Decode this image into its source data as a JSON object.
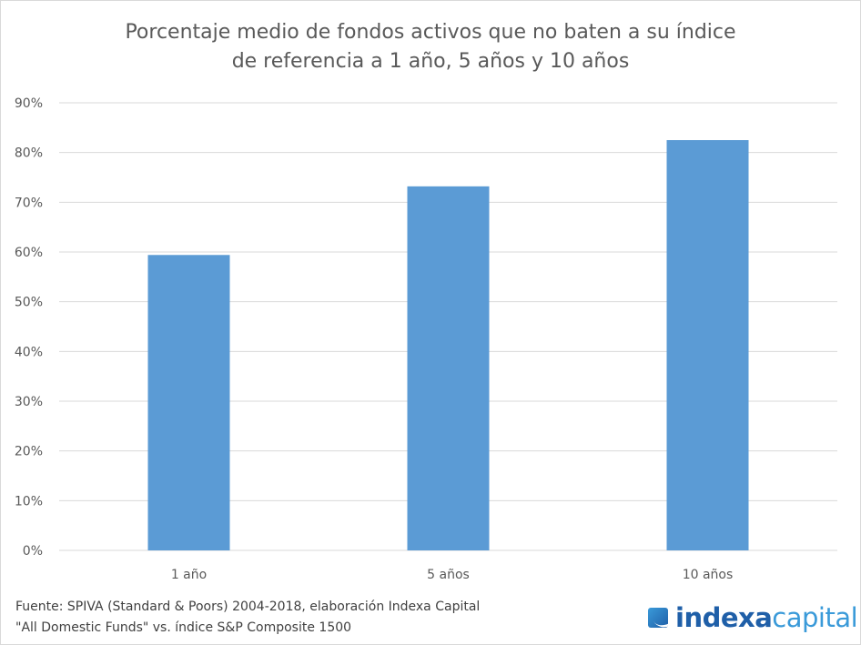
{
  "chart_data": {
    "type": "bar",
    "title_lines": [
      "Porcentaje medio de fondos activos que no baten a su índice",
      "de referencia a 1 año, 5 años y 10 años"
    ],
    "categories": [
      "1 año",
      "5 años",
      "10 años"
    ],
    "values": [
      59.4,
      73.2,
      82.5
    ],
    "value_unit": "%",
    "ylim": [
      0,
      90
    ],
    "yticks": [
      "0%",
      "10%",
      "20%",
      "30%",
      "40%",
      "50%",
      "60%",
      "70%",
      "80%",
      "90%"
    ],
    "grid": true,
    "legend": "none",
    "bar_color": "#5b9bd5"
  },
  "footer": {
    "line1": "Fuente: SPIVA (Standard & Poors) 2004-2018, elaboración Indexa Capital",
    "line2": "\"All Domestic Funds\" vs. índice S&P Composite 1500"
  },
  "logo": {
    "part1": "indexa",
    "part2": "capital"
  }
}
